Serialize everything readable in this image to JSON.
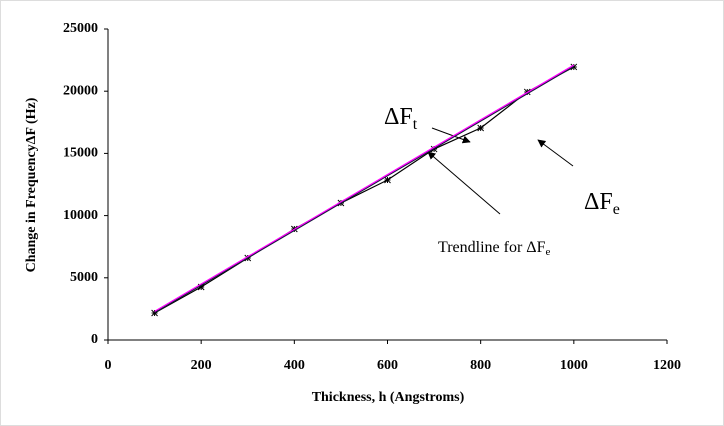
{
  "chart_data": {
    "type": "line",
    "x_label": "Thickness, h (Angstroms)",
    "y_label": "Change in FrequencyΔF  (Hz)",
    "x": [
      100,
      200,
      300,
      400,
      500,
      600,
      700,
      800,
      900,
      1000
    ],
    "series": [
      {
        "color": "#000000",
        "marker": "asterisk",
        "values": [
          2170,
          4260,
          6590,
          8920,
          11010,
          12860,
          15350,
          17040,
          19940,
          21950
        ]
      },
      {
        "color": "#1a1a40",
        "marker": "none",
        "values": [
          2200,
          4400,
          6600,
          8800,
          11000,
          13200,
          15400,
          17600,
          19800,
          22000
        ]
      },
      {
        "color": "#ff00ff",
        "marker": "none",
        "values": [
          2300,
          4500,
          6700,
          8900,
          11100,
          13300,
          15500,
          17700,
          19900,
          22100
        ]
      }
    ],
    "annotations": [
      {
        "text": "ΔF",
        "sub": "t"
      },
      {
        "text": "ΔF",
        "sub": "e"
      },
      {
        "text": "Trendline for ΔF",
        "sub": "e"
      }
    ],
    "xlim": [
      0,
      1200
    ],
    "xticks": [
      0,
      200,
      400,
      600,
      800,
      1000,
      1200
    ],
    "ylim": [
      0,
      25000
    ],
    "yticks": [
      0,
      5000,
      10000,
      15000,
      20000,
      25000
    ],
    "grid": false
  }
}
